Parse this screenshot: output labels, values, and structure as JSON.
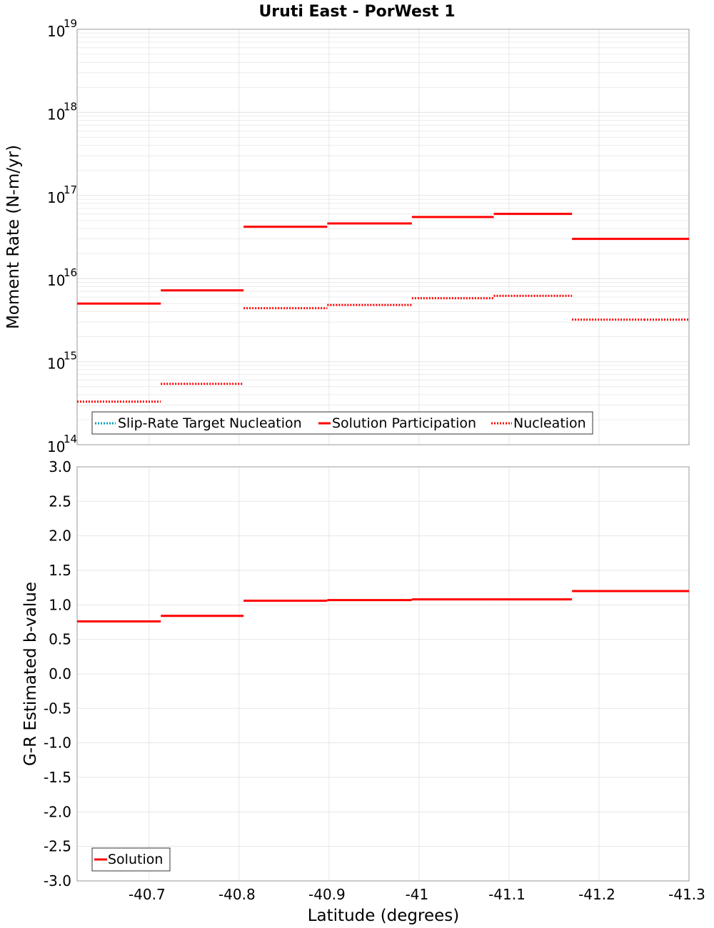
{
  "chart_data": [
    {
      "type": "line",
      "title": "Uruti East - PorWest 1",
      "xlabel": "",
      "ylabel": "Moment Rate (N-m/yr)",
      "yscale": "log",
      "ylim": [
        100000000000000.0,
        1e+19
      ],
      "xlim": [
        -40.62,
        -41.3
      ],
      "y_tick_labels": [
        {
          "base": "10",
          "exp": "14"
        },
        {
          "base": "10",
          "exp": "15"
        },
        {
          "base": "10",
          "exp": "16"
        },
        {
          "base": "10",
          "exp": "17"
        },
        {
          "base": "10",
          "exp": "18"
        },
        {
          "base": "10",
          "exp": "19"
        }
      ],
      "grid": true,
      "legend": "bottom-left",
      "series": [
        {
          "name": "Slip-Rate Target Nucleation",
          "style": "dotted",
          "color": "#00a0c0",
          "segments": []
        },
        {
          "name": "Solution Participation",
          "style": "solid",
          "color": "#ff0000",
          "segments": [
            {
              "x1": -40.62,
              "x2": -40.713,
              "y": 5000000000000000.0
            },
            {
              "x1": -40.713,
              "x2": -40.805,
              "y": 7200000000000000.0
            },
            {
              "x1": -40.805,
              "x2": -40.898,
              "y": 4.2e+16
            },
            {
              "x1": -40.898,
              "x2": -40.992,
              "y": 4.6e+16
            },
            {
              "x1": -40.992,
              "x2": -41.083,
              "y": 5.5e+16
            },
            {
              "x1": -41.083,
              "x2": -41.17,
              "y": 6e+16
            },
            {
              "x1": -41.17,
              "x2": -41.25,
              "y": 3e+16
            },
            {
              "x1": -41.25,
              "x2": -41.3,
              "y": 3e+16
            }
          ]
        },
        {
          "name": "Nucleation",
          "style": "dotted",
          "color": "#ff0000",
          "segments": [
            {
              "x1": -40.62,
              "x2": -40.713,
              "y": 330000000000000.0
            },
            {
              "x1": -40.713,
              "x2": -40.805,
              "y": 540000000000000.0
            },
            {
              "x1": -40.805,
              "x2": -40.898,
              "y": 4400000000000000.0
            },
            {
              "x1": -40.898,
              "x2": -40.992,
              "y": 4800000000000000.0
            },
            {
              "x1": -40.992,
              "x2": -41.083,
              "y": 5800000000000000.0
            },
            {
              "x1": -41.083,
              "x2": -41.17,
              "y": 6200000000000000.0
            },
            {
              "x1": -41.17,
              "x2": -41.25,
              "y": 3200000000000000.0
            },
            {
              "x1": -41.25,
              "x2": -41.3,
              "y": 3200000000000000.0
            }
          ]
        }
      ]
    },
    {
      "type": "line",
      "title": "",
      "xlabel": "Latitude (degrees)",
      "ylabel": "G-R Estimated b-value",
      "ylim": [
        -3.0,
        3.0
      ],
      "xlim": [
        -40.62,
        -41.3
      ],
      "y_ticks": [
        "3.0",
        "2.5",
        "2.0",
        "1.5",
        "1.0",
        "0.5",
        "0.0",
        "-0.5",
        "-1.0",
        "-1.5",
        "-2.0",
        "-2.5",
        "-3.0"
      ],
      "x_ticks": [
        "-40.7",
        "-40.8",
        "-40.9",
        "-41",
        "-41.1",
        "-41.2",
        "-41.3"
      ],
      "grid": true,
      "legend": "bottom-left",
      "series": [
        {
          "name": "Solution",
          "style": "solid",
          "color": "#ff0000",
          "segments": [
            {
              "x1": -40.62,
              "x2": -40.713,
              "y": 0.76
            },
            {
              "x1": -40.713,
              "x2": -40.805,
              "y": 0.84
            },
            {
              "x1": -40.805,
              "x2": -40.898,
              "y": 1.06
            },
            {
              "x1": -40.898,
              "x2": -40.992,
              "y": 1.07
            },
            {
              "x1": -40.992,
              "x2": -41.083,
              "y": 1.08
            },
            {
              "x1": -41.083,
              "x2": -41.17,
              "y": 1.08
            },
            {
              "x1": -41.17,
              "x2": -41.25,
              "y": 1.2
            },
            {
              "x1": -41.25,
              "x2": -41.3,
              "y": 1.2
            }
          ]
        }
      ]
    }
  ]
}
